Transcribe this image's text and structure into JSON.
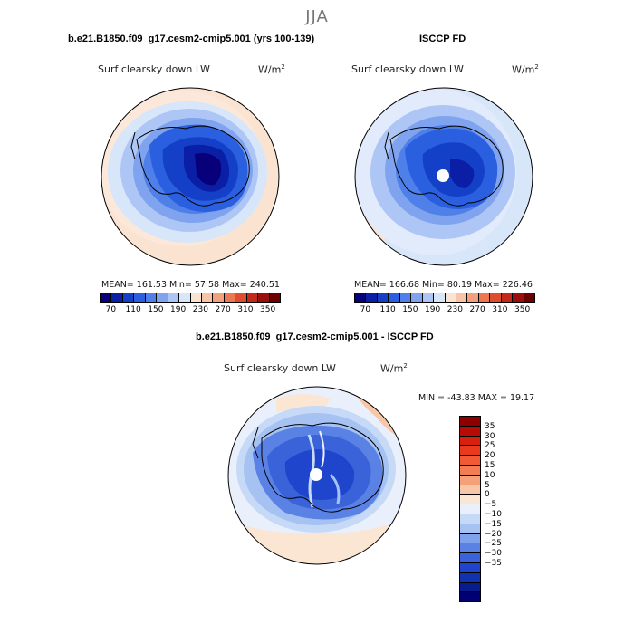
{
  "figure": {
    "season": "JJA"
  },
  "panels": [
    {
      "title": "b.e21.B1850.f09_g17.cesm2-cmip5.001 (yrs 100-139)",
      "field": "Surf clearsky down LW",
      "units": "W/m",
      "units_exp": "2",
      "stats_text": "MEAN= 161.53   Min=   57.58   Max= 240.51"
    },
    {
      "title": "ISCCP FD",
      "field": "Surf clearsky down LW",
      "units": "W/m",
      "units_exp": "2",
      "stats_text": "MEAN= 166.68   Min=   80.19   Max= 226.46"
    },
    {
      "title": "b.e21.B1850.f09_g17.cesm2-cmip5.001 - ISCCP FD",
      "field": "Surf clearsky down LW",
      "units": "W/m",
      "units_exp": "2",
      "stats_text": "MIN = -43.83 MAX =  19.17"
    }
  ],
  "chart_data": [
    {
      "type": "heatmap",
      "projection": "south-polar-stereographic",
      "title": "b.e21.B1850.f09_g17.cesm2-cmip5.001 (yrs 100-139)",
      "field": "Surf clearsky down LW",
      "units": "W/m2",
      "stats": {
        "mean": 161.53,
        "min": 57.58,
        "max": 240.51
      },
      "colorbar": {
        "orientation": "horizontal",
        "tick_labels": [
          "70",
          "110",
          "150",
          "190",
          "230",
          "270",
          "310",
          "350"
        ],
        "colors": [
          "#08007a",
          "#0a1fa5",
          "#1440c8",
          "#2a5fe0",
          "#4f7fe8",
          "#7fa3ee",
          "#adc6f5",
          "#d8e6fa",
          "#fbe3d2",
          "#f8c4a6",
          "#f3a07c",
          "#ec7752",
          "#de4d2e",
          "#c4281b",
          "#9a0e0e",
          "#6b0000"
        ]
      }
    },
    {
      "type": "heatmap",
      "projection": "south-polar-stereographic",
      "title": "ISCCP FD",
      "field": "Surf clearsky down LW",
      "units": "W/m2",
      "stats": {
        "mean": 166.68,
        "min": 80.19,
        "max": 226.46
      },
      "colorbar": {
        "orientation": "horizontal",
        "tick_labels": [
          "70",
          "110",
          "150",
          "190",
          "230",
          "270",
          "310",
          "350"
        ],
        "colors": [
          "#08007a",
          "#0a1fa5",
          "#1440c8",
          "#2a5fe0",
          "#4f7fe8",
          "#7fa3ee",
          "#adc6f5",
          "#d8e6fa",
          "#fbe3d2",
          "#f8c4a6",
          "#f3a07c",
          "#ec7752",
          "#de4d2e",
          "#c4281b",
          "#9a0e0e",
          "#6b0000"
        ]
      }
    },
    {
      "type": "heatmap",
      "projection": "south-polar-stereographic",
      "title": "b.e21.B1850.f09_g17.cesm2-cmip5.001 - ISCCP FD",
      "field": "Surf clearsky down LW",
      "units": "W/m2",
      "stats": {
        "min": -43.83,
        "max": 19.17
      },
      "colorbar": {
        "orientation": "vertical",
        "tick_labels": [
          "35",
          "30",
          "25",
          "20",
          "15",
          "10",
          "5",
          "0",
          "−5",
          "−10",
          "−15",
          "−20",
          "−25",
          "−30",
          "−35"
        ],
        "colors": [
          "#8e0000",
          "#b80b05",
          "#d8200f",
          "#ea3a1d",
          "#f25a35",
          "#f47c52",
          "#f6a07a",
          "#f8c7a8",
          "#fbe6d4",
          "#e9f0fb",
          "#c6d9f6",
          "#a5c2f2",
          "#7fa2ec",
          "#5a82e4",
          "#3a63da",
          "#1f45cc",
          "#1232b0",
          "#081c8e",
          "#000070"
        ]
      }
    }
  ]
}
